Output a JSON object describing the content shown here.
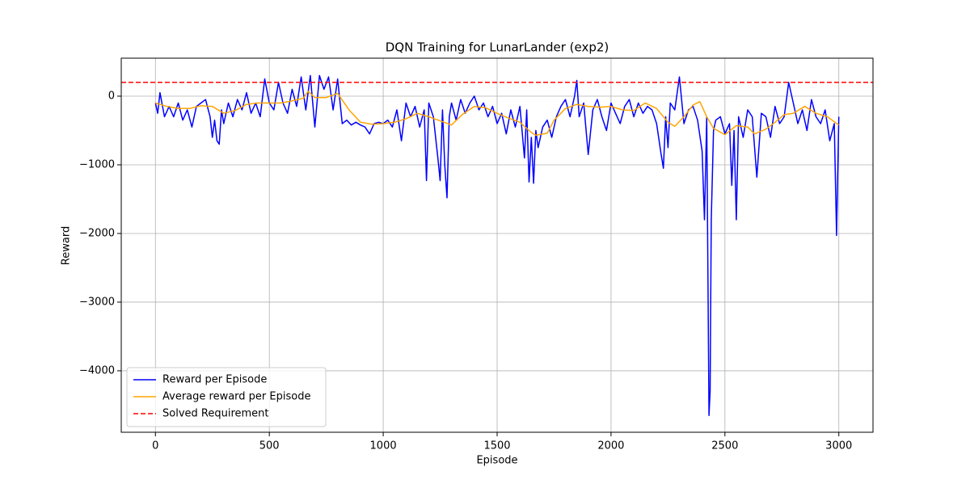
{
  "chart_data": {
    "type": "line",
    "title": "DQN Training for LunarLander (exp2)",
    "x_label": "Episode",
    "y_label": "Reward",
    "xlim": [
      -150,
      3150
    ],
    "ylim": [
      -4895,
      553
    ],
    "xticks": [
      0,
      500,
      1000,
      1500,
      2000,
      2500,
      3000
    ],
    "yticks": [
      {
        "value": -4000,
        "label": "−4000"
      },
      {
        "value": -3000,
        "label": "−3000"
      },
      {
        "value": -2000,
        "label": "−2000"
      },
      {
        "value": -1000,
        "label": "−1000"
      },
      0
    ],
    "grid": true,
    "legend": "lower left",
    "series": [
      {
        "name": "Reward per Episode",
        "color": "#0000ff",
        "x": [
          0,
          10,
          20,
          40,
          60,
          80,
          100,
          120,
          140,
          160,
          180,
          200,
          220,
          240,
          250,
          260,
          270,
          280,
          290,
          300,
          320,
          340,
          360,
          380,
          400,
          420,
          440,
          460,
          480,
          500,
          520,
          540,
          560,
          580,
          600,
          620,
          640,
          660,
          680,
          700,
          720,
          740,
          760,
          780,
          800,
          820,
          840,
          860,
          880,
          900,
          920,
          940,
          960,
          980,
          1000,
          1020,
          1040,
          1060,
          1080,
          1100,
          1120,
          1140,
          1160,
          1180,
          1190,
          1200,
          1220,
          1240,
          1250,
          1260,
          1270,
          1280,
          1290,
          1300,
          1320,
          1340,
          1360,
          1380,
          1400,
          1420,
          1440,
          1460,
          1480,
          1500,
          1520,
          1540,
          1560,
          1580,
          1600,
          1620,
          1630,
          1640,
          1650,
          1660,
          1670,
          1680,
          1700,
          1720,
          1740,
          1760,
          1780,
          1800,
          1820,
          1840,
          1850,
          1860,
          1880,
          1900,
          1920,
          1940,
          1960,
          1980,
          2000,
          2020,
          2040,
          2060,
          2080,
          2100,
          2120,
          2140,
          2160,
          2180,
          2200,
          2220,
          2230,
          2240,
          2250,
          2260,
          2280,
          2300,
          2320,
          2340,
          2360,
          2380,
          2400,
          2410,
          2420,
          2430,
          2435,
          2440,
          2450,
          2460,
          2480,
          2500,
          2520,
          2530,
          2540,
          2550,
          2560,
          2580,
          2600,
          2620,
          2640,
          2660,
          2680,
          2700,
          2720,
          2740,
          2760,
          2780,
          2800,
          2820,
          2840,
          2860,
          2880,
          2900,
          2920,
          2940,
          2960,
          2980,
          2990,
          3000
        ],
        "values": [
          -100,
          -250,
          50,
          -300,
          -150,
          -300,
          -100,
          -350,
          -200,
          -450,
          -150,
          -100,
          -50,
          -300,
          -600,
          -350,
          -650,
          -700,
          -200,
          -400,
          -100,
          -300,
          -50,
          -200,
          50,
          -250,
          -100,
          -300,
          250,
          -100,
          -200,
          200,
          -100,
          -250,
          100,
          -150,
          280,
          -200,
          300,
          -450,
          300,
          100,
          280,
          -200,
          250,
          -400,
          -350,
          -420,
          -380,
          -420,
          -450,
          -550,
          -400,
          -380,
          -400,
          -350,
          -450,
          -200,
          -650,
          -100,
          -300,
          -150,
          -450,
          -200,
          -1230,
          -100,
          -300,
          -900,
          -1230,
          -200,
          -1000,
          -1480,
          -300,
          -100,
          -350,
          -50,
          -250,
          -100,
          0,
          -200,
          -100,
          -300,
          -150,
          -400,
          -250,
          -550,
          -200,
          -450,
          -150,
          -900,
          -200,
          -1250,
          -600,
          -1270,
          -500,
          -750,
          -450,
          -350,
          -600,
          -300,
          -150,
          -50,
          -300,
          0,
          230,
          -300,
          -100,
          -850,
          -200,
          -50,
          -300,
          -500,
          -100,
          -250,
          -400,
          -150,
          -50,
          -300,
          -100,
          -250,
          -150,
          -200,
          -400,
          -850,
          -1050,
          -300,
          -750,
          -100,
          -200,
          280,
          -400,
          -200,
          -150,
          -350,
          -800,
          -1800,
          -300,
          -4650,
          -4300,
          -1800,
          -500,
          -350,
          -300,
          -550,
          -400,
          -1300,
          -500,
          -1800,
          -300,
          -600,
          -200,
          -300,
          -1180,
          -250,
          -300,
          -600,
          -150,
          -400,
          -300,
          200,
          -100,
          -400,
          -200,
          -500,
          -50,
          -300,
          -400,
          -200,
          -650,
          -400,
          -2030,
          -300
        ]
      },
      {
        "name": "Average reward per Episode",
        "color": "#ffa500",
        "x": [
          0,
          50,
          100,
          150,
          200,
          250,
          300,
          350,
          400,
          450,
          500,
          550,
          600,
          650,
          670,
          700,
          750,
          800,
          850,
          900,
          950,
          1000,
          1050,
          1100,
          1150,
          1200,
          1250,
          1300,
          1350,
          1400,
          1450,
          1500,
          1550,
          1600,
          1650,
          1670,
          1720,
          1750,
          1800,
          1850,
          1900,
          1950,
          2000,
          2050,
          2100,
          2150,
          2200,
          2250,
          2280,
          2320,
          2360,
          2390,
          2420,
          2450,
          2500,
          2550,
          2600,
          2630,
          2680,
          2720,
          2760,
          2800,
          2850,
          2900,
          2950,
          3000
        ],
        "values": [
          -100,
          -150,
          -180,
          -180,
          -140,
          -150,
          -250,
          -210,
          -120,
          -100,
          -100,
          -100,
          -70,
          -30,
          70,
          -20,
          -20,
          40,
          -200,
          -380,
          -410,
          -400,
          -380,
          -330,
          -250,
          -300,
          -360,
          -420,
          -260,
          -150,
          -170,
          -250,
          -320,
          -380,
          -530,
          -570,
          -540,
          -350,
          -180,
          -120,
          -150,
          -160,
          -150,
          -200,
          -210,
          -100,
          -180,
          -380,
          -440,
          -300,
          -130,
          -80,
          -300,
          -470,
          -560,
          -430,
          -450,
          -550,
          -480,
          -380,
          -270,
          -250,
          -150,
          -250,
          -300,
          -420
        ]
      }
    ],
    "hlines": [
      {
        "name": "Solved Requirement",
        "color": "#ff0000",
        "y": 200,
        "dashed": true
      }
    ]
  }
}
